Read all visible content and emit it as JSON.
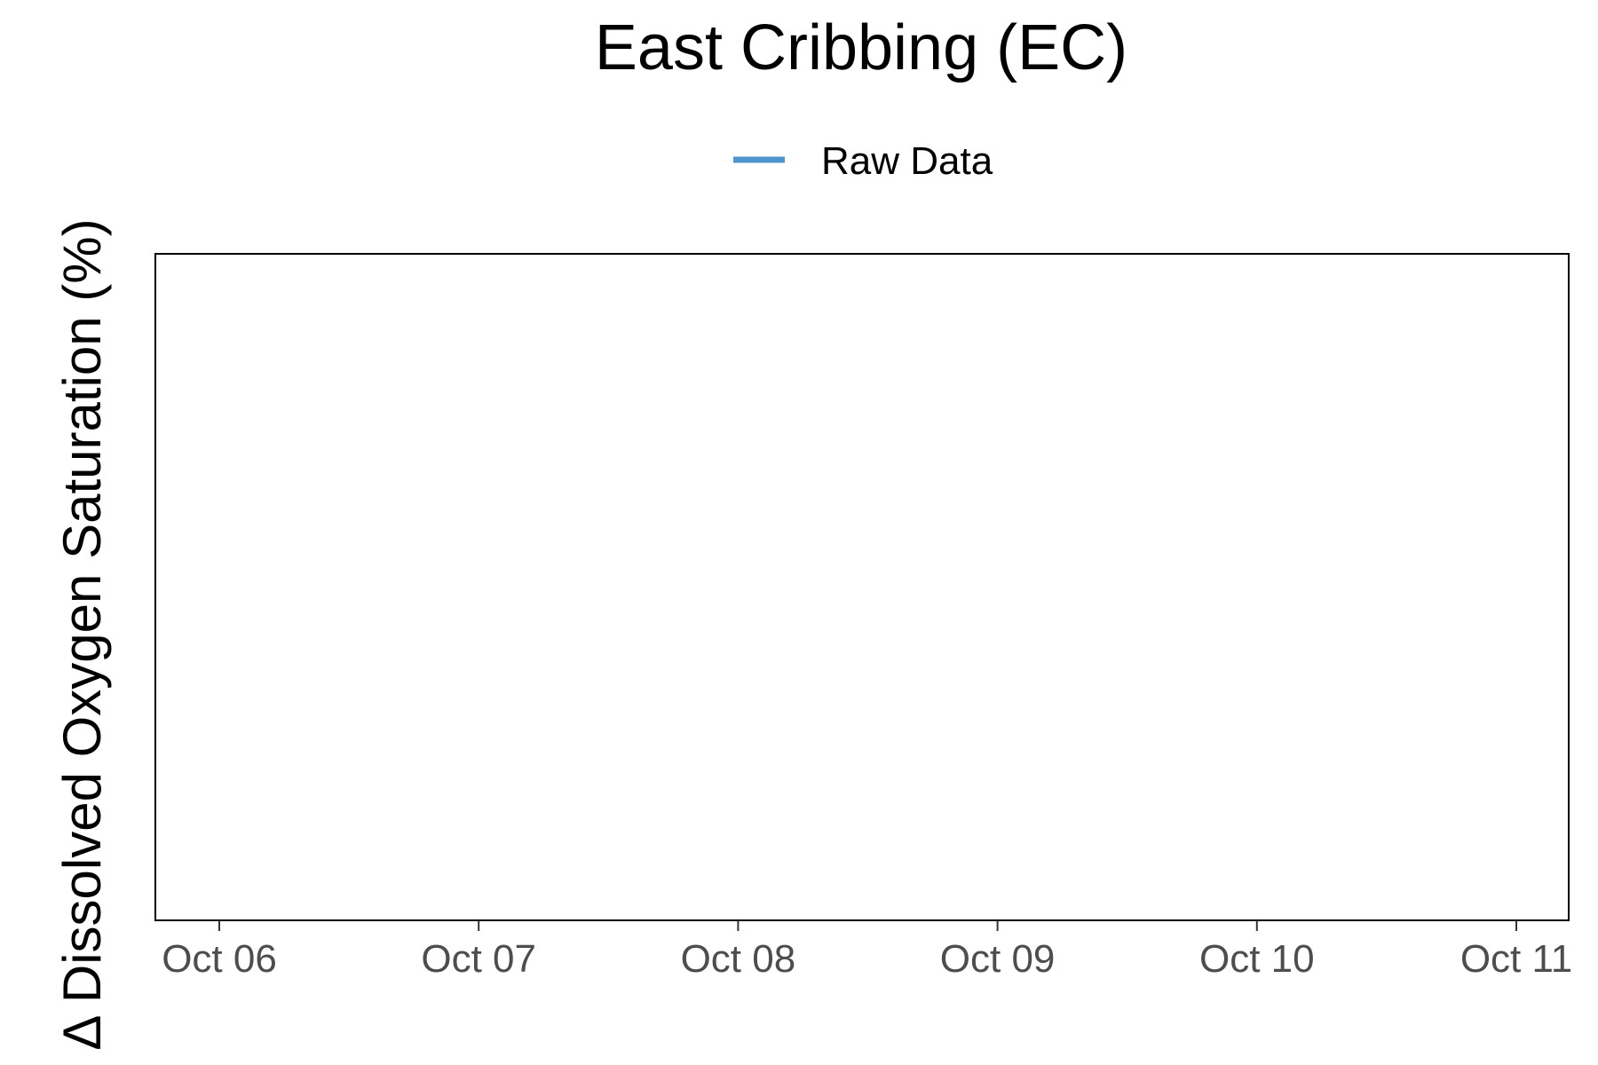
{
  "chart_data": {
    "type": "line",
    "title": "East Cribbing (EC)",
    "xlabel": "",
    "ylabel": "Δ Dissolved Oxygen Saturation (%)",
    "x_ticks": [
      "Oct 06",
      "Oct 07",
      "Oct 08",
      "Oct 09",
      "Oct 10",
      "Oct 11"
    ],
    "series": [
      {
        "name": "Raw Data",
        "color": "#4f94cd",
        "x": [],
        "y": []
      }
    ],
    "grid": false,
    "legend_position": "top"
  }
}
